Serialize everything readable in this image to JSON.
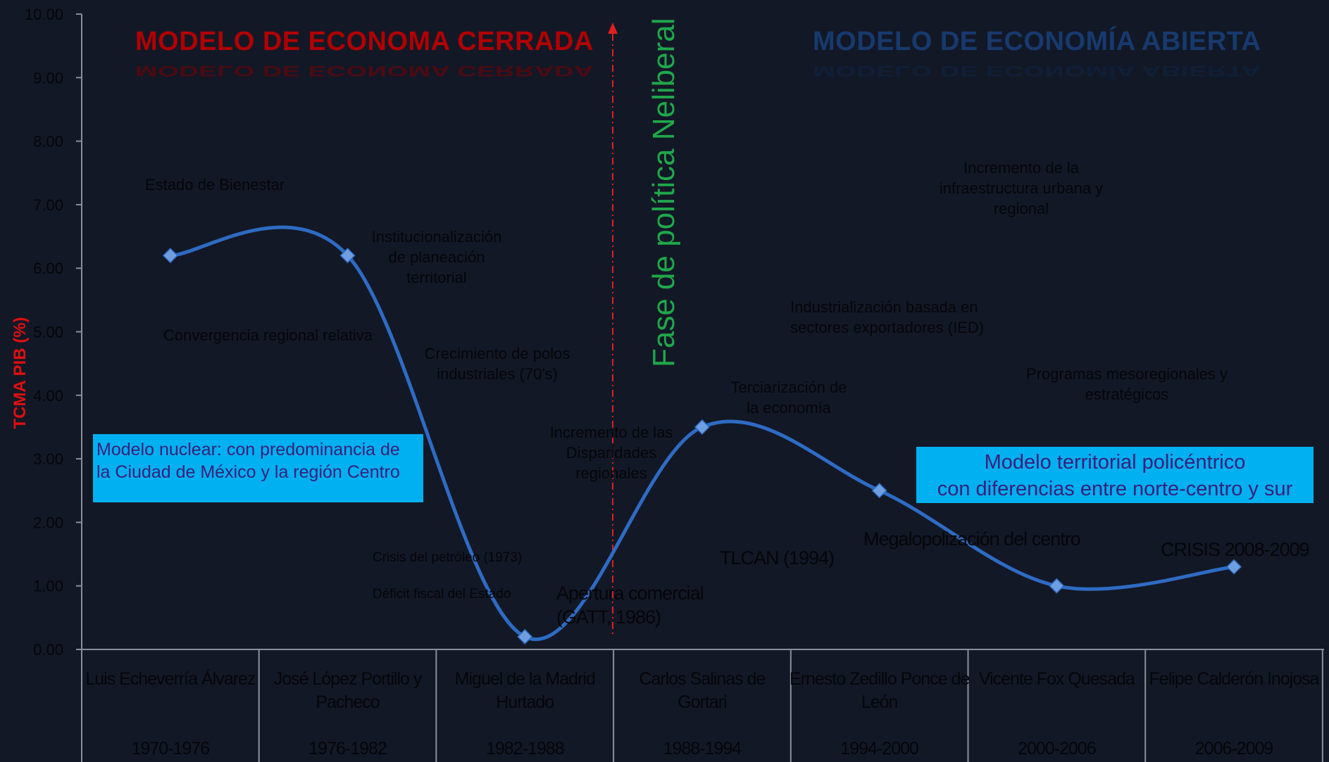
{
  "chart_data": {
    "type": "line",
    "ylabel": "TCMA PIB  (%)",
    "ylim": [
      0,
      10
    ],
    "yticks": [
      "0.00",
      "1.00",
      "2.00",
      "3.00",
      "4.00",
      "5.00",
      "6.00",
      "7.00",
      "8.00",
      "9.00",
      "10.00"
    ],
    "categories": [
      {
        "name": "Luis Echeverría Álvarez",
        "period": "1970-1976"
      },
      {
        "name": "José López Portillo y Pacheco",
        "period": "1976-1982"
      },
      {
        "name": "Miguel de la Madrid Hurtado",
        "period": "1982-1988"
      },
      {
        "name": "Carlos Salinas de Gortari",
        "period": "1988-1994"
      },
      {
        "name": "Ernesto Zedillo Ponce de León",
        "period": "1994-2000"
      },
      {
        "name": "Vicente Fox Quesada",
        "period": "2000-2006"
      },
      {
        "name": "Felipe Calderón Inojosa",
        "period": "2006-2009"
      }
    ],
    "values": [
      6.2,
      6.2,
      0.2,
      3.5,
      2.5,
      1.0,
      1.3
    ],
    "line_color": "#2e6bc4",
    "marker_color": "#6f9ee0",
    "axis_color": "#8a8f9c",
    "tick_color": "#05060a"
  },
  "titles": {
    "closed": "MODELO DE ECONOMA CERRADA",
    "open": "MODELO DE ECONOMÍA ABIERTA",
    "closed_color": "#b00000",
    "open_color": "#173a6e"
  },
  "vertical_label": "Fase de política Neliberal",
  "annotations": {
    "estado_bienestar": "Estado de Bienestar",
    "institucionalizacion": "Institucionalización\nde planeación\nterritorial",
    "convergencia": "Convergencia regional relativa",
    "crecimiento_polos": "Crecimiento de polos\nindustriales (70's)",
    "incremento_disparidades": "Incremento de las\nDisparidades\nregionales",
    "crisis_petroleo": "Crisis del petróleo  (1973)",
    "deficit_fiscal": "Déficit fiscal del Estado",
    "apertura": "Apertura comercial\n(GATT, 1986)",
    "terciarizacion": "Terciarización de\nla economía",
    "tlcan": "TLCAN (1994)",
    "industrializacion": "Industrialización basada en\nsectores  exportadores (IED)",
    "incremento_infra": "Incremento de la\ninfraestructura urbana y\nregional",
    "programas": "Programas mesoregionales y\nestratégicos",
    "megalopolizacion": "Megalopolización del centro",
    "crisis_2008": "CRISIS 2008-2009"
  },
  "boxes": {
    "nuclear": "Modelo nuclear: con predominancia de\nla Ciudad de México y la región  Centro",
    "policentrico": "Modelo territorial policéntrico\ncon diferencias entre norte-centro y sur"
  }
}
